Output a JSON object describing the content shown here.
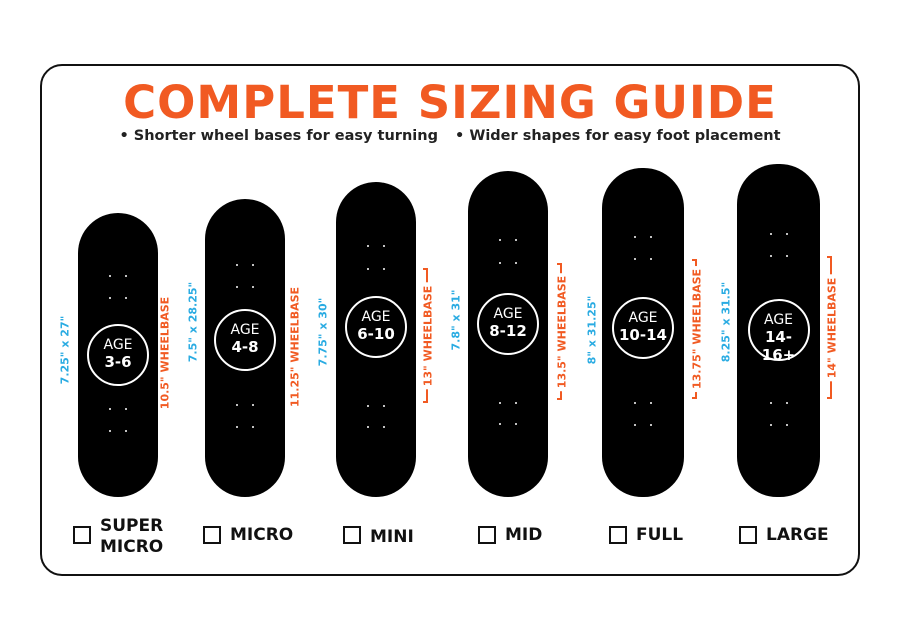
{
  "title": "COMPLETE SIZING GUIDE",
  "bullets": [
    "• Shorter wheel bases for easy turning",
    "• Wider shapes for easy foot placement"
  ],
  "colors": {
    "accent": "#f15a22",
    "size_text": "#29abe2",
    "board": "#000000"
  },
  "boards": [
    {
      "age_label": "AGE",
      "age_range": "3-6",
      "size": "7.25\" x 27\"",
      "wheelbase": "10.5\" WHEELBASE",
      "name_lines": [
        "SUPER",
        "MICRO"
      ]
    },
    {
      "age_label": "AGE",
      "age_range": "4-8",
      "size": "7.5\" x 28.25\"",
      "wheelbase": "11.25\" WHEELBASE",
      "name_lines": [
        "MICRO"
      ]
    },
    {
      "age_label": "AGE",
      "age_range": "6-10",
      "size": "7.75\" x 30\"",
      "wheelbase": "13\" WHEELBASE",
      "name_lines": [
        "MINI"
      ]
    },
    {
      "age_label": "AGE",
      "age_range": "8-12",
      "size": "7.8\" x 31\"",
      "wheelbase": "13.5\" WHEELBASE",
      "name_lines": [
        "MID"
      ]
    },
    {
      "age_label": "AGE",
      "age_range": "10-14",
      "size": "8\" x 31.25\"",
      "wheelbase": "13.75\" WHEELBASE",
      "name_lines": [
        "FULL"
      ]
    },
    {
      "age_label": "AGE",
      "age_range": "14-16+",
      "size": "8.25\" x 31.5\"",
      "wheelbase": "14\" WHEELBASE",
      "name_lines": [
        "LARGE"
      ]
    }
  ]
}
